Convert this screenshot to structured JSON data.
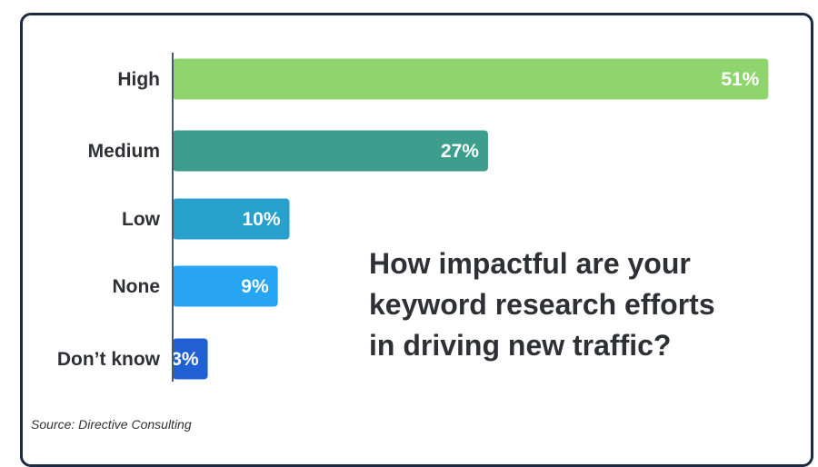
{
  "chart_data": {
    "type": "bar",
    "orientation": "horizontal",
    "title": "How impactful are your keyword research efforts in driving new traffic?",
    "categories": [
      "High",
      "Medium",
      "Low",
      "None",
      "Don’t know"
    ],
    "values": [
      51,
      27,
      10,
      9,
      3
    ],
    "value_labels": [
      "51%",
      "27%",
      "10%",
      "9%",
      "3%"
    ],
    "unit": "%",
    "colors": [
      "#8fd46c",
      "#3e9e8e",
      "#27a0cc",
      "#27a4f2",
      "#2060d4"
    ],
    "grid": false,
    "legend": "none"
  },
  "title_lines": [
    "How impactful are your",
    "keyword research efforts",
    "in driving new traffic?"
  ],
  "source": "Source: Directive Consulting",
  "colors": {
    "border": "#1e2a44",
    "axis": "#4a5a6a",
    "text": "#2f2f36"
  }
}
